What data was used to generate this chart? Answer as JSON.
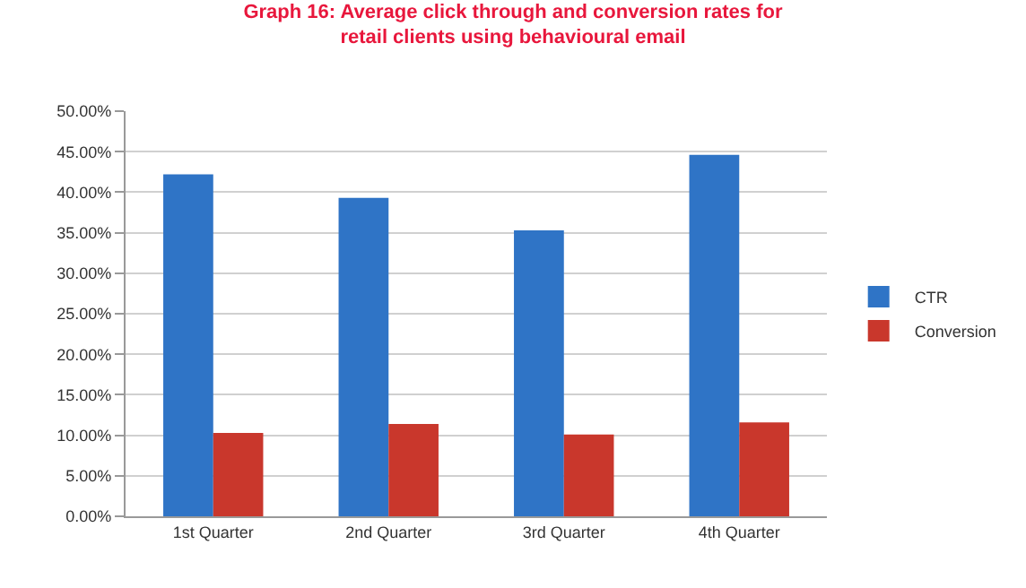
{
  "chart_data": {
    "type": "bar",
    "title": "Graph 16: Average click through and conversion rates for retail clients using behavioural email",
    "categories": [
      "1st Quarter",
      "2nd Quarter",
      "3rd Quarter",
      "4th Quarter"
    ],
    "series": [
      {
        "name": "CTR",
        "color": "#2f74c6",
        "values": [
          42.2,
          39.3,
          35.3,
          44.6
        ]
      },
      {
        "name": "Conversion",
        "color": "#c9372c",
        "values": [
          10.3,
          11.4,
          10.1,
          11.6
        ]
      }
    ],
    "ylim": [
      0,
      50
    ],
    "yticks": [
      {
        "value": 0,
        "label": "0.00%"
      },
      {
        "value": 5,
        "label": "5.00%"
      },
      {
        "value": 10,
        "label": "10.00%"
      },
      {
        "value": 15,
        "label": "15.00%"
      },
      {
        "value": 20,
        "label": "20.00%"
      },
      {
        "value": 25,
        "label": "25.00%"
      },
      {
        "value": 30,
        "label": "30.00%"
      },
      {
        "value": 35,
        "label": "35.00%"
      },
      {
        "value": 40,
        "label": "40.00%"
      },
      {
        "value": 45,
        "label": "45.00%"
      },
      {
        "value": 50,
        "label": "50.00%"
      }
    ],
    "grid": "y",
    "legend": "right"
  }
}
